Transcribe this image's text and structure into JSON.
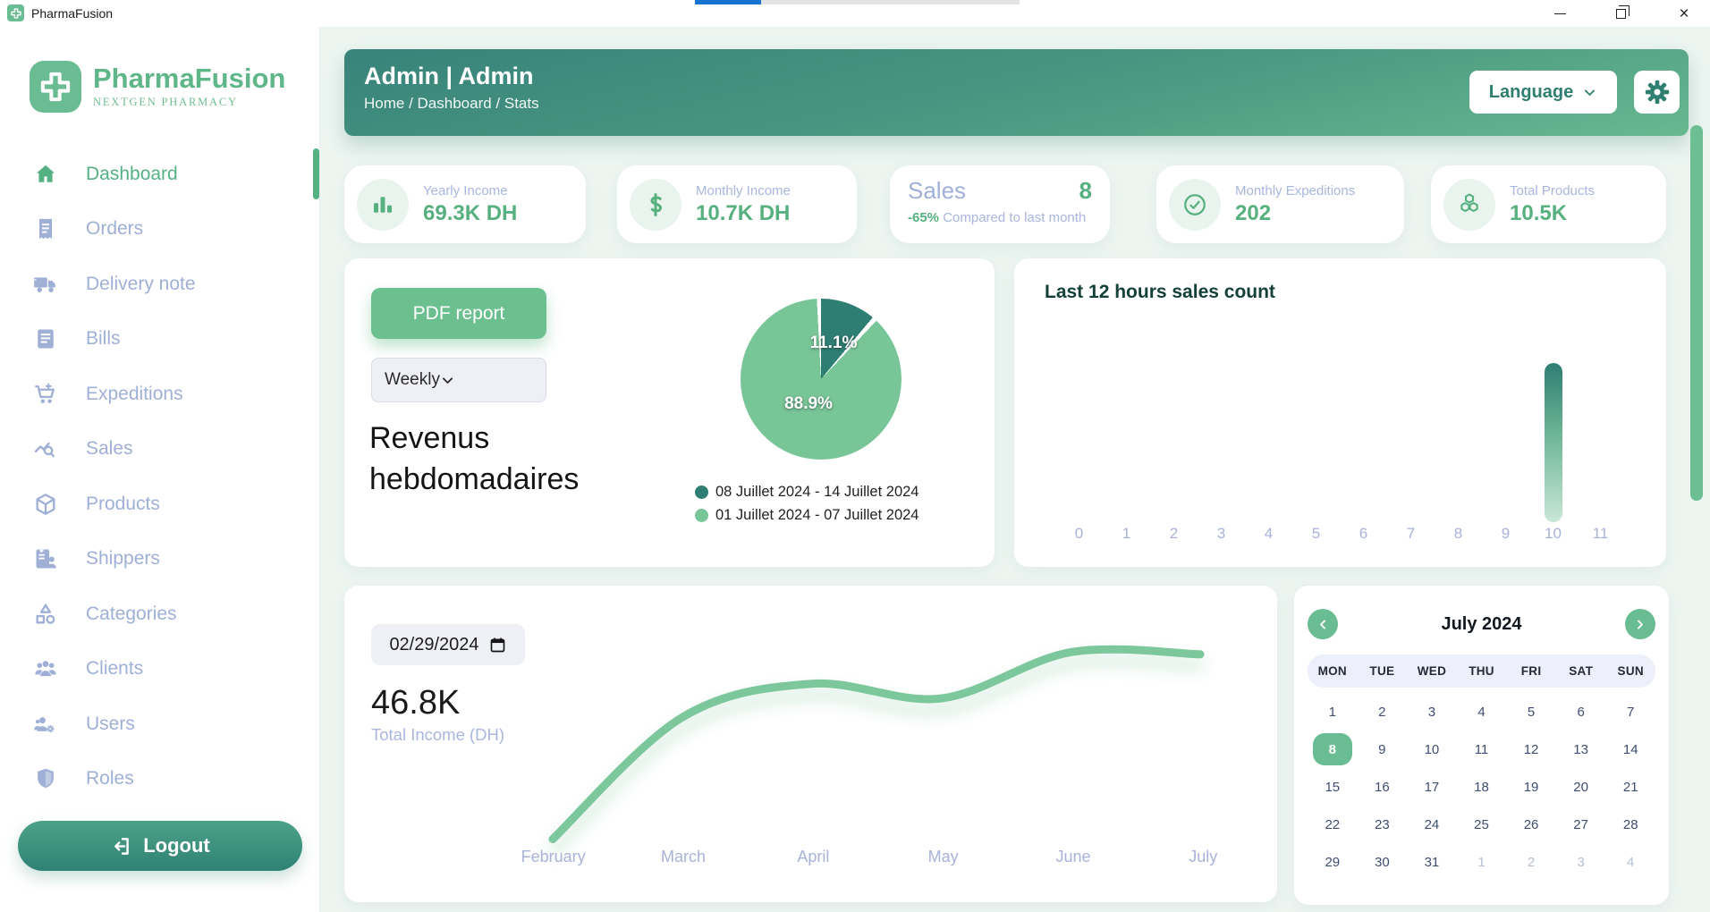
{
  "titlebar": {
    "app_name": "PharmaFusion"
  },
  "sidebar": {
    "brand_name": "PharmaFusion",
    "brand_tagline": "NEXTGEN PHARMACY",
    "items": [
      {
        "label": "Dashboard",
        "icon": "home",
        "active": true
      },
      {
        "label": "Orders",
        "icon": "receipt"
      },
      {
        "label": "Delivery note",
        "icon": "truck"
      },
      {
        "label": "Bills",
        "icon": "bill"
      },
      {
        "label": "Expeditions",
        "icon": "cart"
      },
      {
        "label": "Sales",
        "icon": "sales"
      },
      {
        "label": "Products",
        "icon": "box"
      },
      {
        "label": "Shippers",
        "icon": "shipper"
      },
      {
        "label": "Categories",
        "icon": "categories"
      },
      {
        "label": "Clients",
        "icon": "clients"
      },
      {
        "label": "Users",
        "icon": "users"
      },
      {
        "label": "Roles",
        "icon": "shield"
      }
    ],
    "logout_label": "Logout"
  },
  "header": {
    "title": "Admin | Admin",
    "breadcrumb": "Home / Dashboard / Stats",
    "language_label": "Language"
  },
  "stats": [
    {
      "type": "icon",
      "icon": "bar-chart",
      "label": "Yearly Income",
      "value": "69.3K DH"
    },
    {
      "type": "icon",
      "icon": "dollar",
      "label": "Monthly Income",
      "value": "10.7K DH"
    },
    {
      "type": "sales",
      "title": "Sales",
      "value": "8",
      "delta": "-65%",
      "delta_caption": "Compared to last month"
    },
    {
      "type": "icon",
      "icon": "check-circle",
      "label": "Monthly Expeditions",
      "value": "202"
    },
    {
      "type": "icon",
      "icon": "cubes",
      "label": "Total Products",
      "value": "10.5K"
    }
  ],
  "revenue_card": {
    "pdf_button_label": "PDF report",
    "period_value": "Weekly",
    "title_line1": "Revenus",
    "title_line2": "hebdomadaires"
  },
  "hours_card": {
    "title": "Last 12 hours sales count"
  },
  "income_card": {
    "date_value": "02/29/2024",
    "total": "46.8K",
    "total_label": "Total Income (DH)"
  },
  "calendar": {
    "month_title": "July 2024",
    "day_headers": [
      "MON",
      "TUE",
      "WED",
      "THU",
      "FRI",
      "SAT",
      "SUN"
    ],
    "rows": [
      [
        {
          "d": "1"
        },
        {
          "d": "2"
        },
        {
          "d": "3"
        },
        {
          "d": "4"
        },
        {
          "d": "5"
        },
        {
          "d": "6"
        },
        {
          "d": "7"
        }
      ],
      [
        {
          "d": "8",
          "selected": true
        },
        {
          "d": "9"
        },
        {
          "d": "10"
        },
        {
          "d": "11"
        },
        {
          "d": "12"
        },
        {
          "d": "13"
        },
        {
          "d": "14"
        }
      ],
      [
        {
          "d": "15"
        },
        {
          "d": "16"
        },
        {
          "d": "17"
        },
        {
          "d": "18"
        },
        {
          "d": "19"
        },
        {
          "d": "20"
        },
        {
          "d": "21"
        }
      ],
      [
        {
          "d": "22"
        },
        {
          "d": "23"
        },
        {
          "d": "24"
        },
        {
          "d": "25"
        },
        {
          "d": "26"
        },
        {
          "d": "27"
        },
        {
          "d": "28"
        }
      ],
      [
        {
          "d": "29"
        },
        {
          "d": "30"
        },
        {
          "d": "31"
        },
        {
          "d": "1",
          "muted": true
        },
        {
          "d": "2",
          "muted": true
        },
        {
          "d": "3",
          "muted": true
        },
        {
          "d": "4",
          "muted": true
        }
      ]
    ]
  },
  "chart_data": [
    {
      "type": "pie",
      "title": "Revenus hebdomadaires",
      "slices": [
        {
          "label": "08 Juillet 2024 - 14 Juillet 2024",
          "value": 11.1,
          "color": "#2f7e73",
          "on_chart_label": "11.1%"
        },
        {
          "label": "01 Juillet 2024 - 07 Juillet 2024",
          "value": 88.9,
          "color": "#78c597",
          "on_chart_label": "88.9%"
        }
      ],
      "value_format": "percent",
      "legend_position": "bottom"
    },
    {
      "type": "bar",
      "title": "Last 12 hours sales count",
      "categories": [
        "0",
        "1",
        "2",
        "3",
        "4",
        "5",
        "6",
        "7",
        "8",
        "9",
        "10",
        "11"
      ],
      "values": [
        0,
        0,
        0,
        0,
        0,
        0,
        0,
        0,
        0,
        0,
        8,
        0
      ],
      "ylim": [
        0,
        8
      ],
      "note": "single unlabeled bar at hour 10; height estimated as 8 (sales count shown in stats)",
      "bar_color_top": "#2f7e74",
      "bar_color_bottom": "#c9e7d7",
      "grid": false
    },
    {
      "type": "line",
      "categories": [
        "February",
        "March",
        "April",
        "May",
        "June",
        "July"
      ],
      "values": [
        7,
        65,
        81,
        74,
        96,
        95
      ],
      "ylim": [
        0,
        100
      ],
      "note": "y axis unlabeled; values are relative estimates (0-100) of curve height",
      "headline_value": "46.8K",
      "ylabel": "Total Income (DH)",
      "line_color": "#7cc79b",
      "grid": false
    }
  ]
}
